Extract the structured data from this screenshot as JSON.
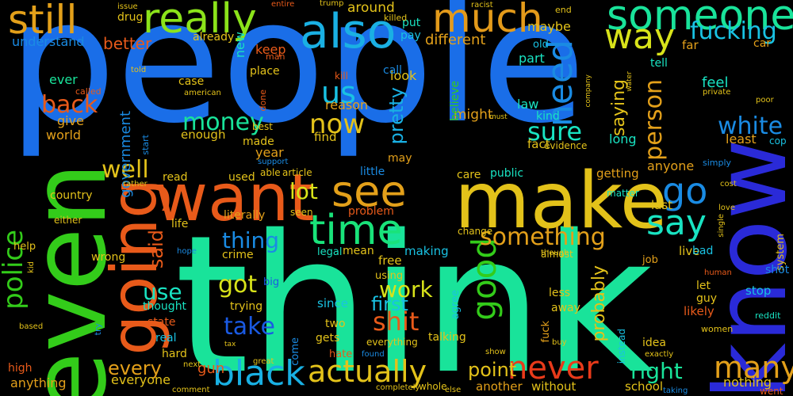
{
  "words": [
    {
      "text": "people",
      "color": "#1a6ee8"
    },
    {
      "text": "think",
      "color": "#19e39a"
    },
    {
      "text": "make",
      "color": "#e3c21a"
    },
    {
      "text": "even",
      "color": "#33cc1a"
    },
    {
      "text": "know",
      "color": "#2a2ad8"
    },
    {
      "text": "want",
      "color": "#e85a1a"
    },
    {
      "text": "going",
      "color": "#e85a1a"
    },
    {
      "text": "also",
      "color": "#1ab0e3"
    },
    {
      "text": "really",
      "color": "#8be31a"
    },
    {
      "text": "much",
      "color": "#e39a1a"
    },
    {
      "text": "someone",
      "color": "#19e39a"
    },
    {
      "text": "still",
      "color": "#e3a01a"
    },
    {
      "text": "way",
      "color": "#d8e31a"
    },
    {
      "text": "time",
      "color": "#19e37a"
    },
    {
      "text": "see",
      "color": "#e3a01a"
    },
    {
      "text": "go",
      "color": "#1a8be3"
    },
    {
      "text": "say",
      "color": "#19e3c2"
    },
    {
      "text": "need",
      "color": "#1a8be3"
    },
    {
      "text": "good",
      "color": "#33cc1a"
    },
    {
      "text": "black",
      "color": "#19b0e3"
    },
    {
      "text": "actually",
      "color": "#e3c21a"
    },
    {
      "text": "never",
      "color": "#e83a1a"
    },
    {
      "text": "many",
      "color": "#e3a01a"
    },
    {
      "text": "right",
      "color": "#19e39a"
    },
    {
      "text": "us",
      "color": "#19c2e3"
    },
    {
      "text": "police",
      "color": "#33cc1a"
    },
    {
      "text": "fucking",
      "color": "#19c2e3"
    },
    {
      "text": "white",
      "color": "#1a8be3"
    },
    {
      "text": "shit",
      "color": "#e85a1a"
    },
    {
      "text": "take",
      "color": "#1a5ae3"
    },
    {
      "text": "now",
      "color": "#e3c21a"
    },
    {
      "text": "something",
      "color": "#e3a01a"
    },
    {
      "text": "sure",
      "color": "#19e3c2"
    },
    {
      "text": "person",
      "color": "#e3a01a"
    },
    {
      "text": "money",
      "color": "#19e39a"
    },
    {
      "text": "well",
      "color": "#e3c21a"
    },
    {
      "text": "thing",
      "color": "#1a8be3"
    },
    {
      "text": "got",
      "color": "#d8e31a"
    },
    {
      "text": "use",
      "color": "#19e3c2"
    },
    {
      "text": "lot",
      "color": "#d8e31a"
    },
    {
      "text": "work",
      "color": "#d8e31a"
    },
    {
      "text": "first",
      "color": "#19c2e3"
    },
    {
      "text": "every",
      "color": "#e3a01a"
    },
    {
      "text": "back",
      "color": "#e85a1a"
    },
    {
      "text": "pretty",
      "color": "#19b0e3"
    },
    {
      "text": "saying",
      "color": "#e3c21a"
    },
    {
      "text": "said",
      "color": "#e85a1a"
    },
    {
      "text": "point",
      "color": "#e3c21a"
    },
    {
      "text": "probably",
      "color": "#e3c21a"
    },
    {
      "text": "government",
      "color": "#1a8be3"
    },
    {
      "text": "better",
      "color": "#e85a1a"
    },
    {
      "text": "understand",
      "color": "#1a8be3"
    },
    {
      "text": "different",
      "color": "#e3a01a"
    },
    {
      "text": "around",
      "color": "#e3c21a"
    },
    {
      "text": "drug",
      "color": "#e3c21a"
    },
    {
      "text": "maybe",
      "color": "#e3c21a"
    },
    {
      "text": "already",
      "color": "#e3c21a"
    },
    {
      "text": "new",
      "color": "#19e3c2"
    },
    {
      "text": "keep",
      "color": "#e85a1a"
    },
    {
      "text": "put",
      "color": "#19e3c2"
    },
    {
      "text": "pay",
      "color": "#19c2e3"
    },
    {
      "text": "look",
      "color": "#e3c21a"
    },
    {
      "text": "part",
      "color": "#19e3c2"
    },
    {
      "text": "tell",
      "color": "#19e3c2"
    },
    {
      "text": "far",
      "color": "#e3a01a"
    },
    {
      "text": "old",
      "color": "#19c2e3"
    },
    {
      "text": "car",
      "color": "#e3a01a"
    },
    {
      "text": "feel",
      "color": "#19e3c2"
    },
    {
      "text": "ever",
      "color": "#19e39a"
    },
    {
      "text": "give",
      "color": "#e3a01a"
    },
    {
      "text": "world",
      "color": "#e3a01a"
    },
    {
      "text": "case",
      "color": "#e3c21a"
    },
    {
      "text": "place",
      "color": "#e3c21a"
    },
    {
      "text": "call",
      "color": "#1a8be3"
    },
    {
      "text": "reason",
      "color": "#e3a01a"
    },
    {
      "text": "kill",
      "color": "#e85a1a"
    },
    {
      "text": "might",
      "color": "#e3a01a"
    },
    {
      "text": "believe",
      "color": "#33cc1a"
    },
    {
      "text": "law",
      "color": "#19e3c2"
    },
    {
      "text": "kind",
      "color": "#19e3c2"
    },
    {
      "text": "fact",
      "color": "#e3c21a"
    },
    {
      "text": "evidence",
      "color": "#e3c21a"
    },
    {
      "text": "long",
      "color": "#19e3c2"
    },
    {
      "text": "least",
      "color": "#e3a01a"
    },
    {
      "text": "cop",
      "color": "#19c2e3"
    },
    {
      "text": "made",
      "color": "#e3c21a"
    },
    {
      "text": "year",
      "color": "#e3a01a"
    },
    {
      "text": "best",
      "color": "#e3c21a"
    },
    {
      "text": "enough",
      "color": "#e3c21a"
    },
    {
      "text": "find",
      "color": "#e3c21a"
    },
    {
      "text": "may",
      "color": "#e3a01a"
    },
    {
      "text": "little",
      "color": "#1a8be3"
    },
    {
      "text": "care",
      "color": "#e3c21a"
    },
    {
      "text": "public",
      "color": "#19e3c2"
    },
    {
      "text": "getting",
      "color": "#e3a01a"
    },
    {
      "text": "anyone",
      "color": "#e3a01a"
    },
    {
      "text": "read",
      "color": "#e3c21a"
    },
    {
      "text": "used",
      "color": "#e3c21a"
    },
    {
      "text": "article",
      "color": "#e3c21a"
    },
    {
      "text": "able",
      "color": "#e3c21a"
    },
    {
      "text": "country",
      "color": "#e3c21a"
    },
    {
      "text": "literally",
      "color": "#e3a01a"
    },
    {
      "text": "problem",
      "color": "#e85a1a"
    },
    {
      "text": "matter",
      "color": "#19e3c2"
    },
    {
      "text": "last",
      "color": "#e3c21a"
    },
    {
      "text": "life",
      "color": "#e3c21a"
    },
    {
      "text": "crime",
      "color": "#e3c21a"
    },
    {
      "text": "legal",
      "color": "#19e3c2"
    },
    {
      "text": "mean",
      "color": "#e3c21a"
    },
    {
      "text": "making",
      "color": "#19c2e3"
    },
    {
      "text": "free",
      "color": "#e3c21a"
    },
    {
      "text": "using",
      "color": "#e3c21a"
    },
    {
      "text": "live",
      "color": "#e3c21a"
    },
    {
      "text": "bad",
      "color": "#19c2e3"
    },
    {
      "text": "job",
      "color": "#e3a01a"
    },
    {
      "text": "let",
      "color": "#e3c21a"
    },
    {
      "text": "guy",
      "color": "#e3c21a"
    },
    {
      "text": "stop",
      "color": "#19c2e3"
    },
    {
      "text": "likely",
      "color": "#e85a1a"
    },
    {
      "text": "wrong",
      "color": "#e3c21a"
    },
    {
      "text": "thought",
      "color": "#19e3c2"
    },
    {
      "text": "trying",
      "color": "#e3c21a"
    },
    {
      "text": "since",
      "color": "#19c2e3"
    },
    {
      "text": "less",
      "color": "#e3c21a"
    },
    {
      "text": "away",
      "color": "#e3c21a"
    },
    {
      "text": "state",
      "color": "#e85a1a"
    },
    {
      "text": "real",
      "color": "#19c2e3"
    },
    {
      "text": "hard",
      "color": "#e3c21a"
    },
    {
      "text": "two",
      "color": "#e3c21a"
    },
    {
      "text": "gets",
      "color": "#e3c21a"
    },
    {
      "text": "talking",
      "color": "#e3c21a"
    },
    {
      "text": "idea",
      "color": "#e3c21a"
    },
    {
      "text": "gun",
      "color": "#e85a1a"
    },
    {
      "text": "high",
      "color": "#e85a1a"
    },
    {
      "text": "anything",
      "color": "#e3a01a"
    },
    {
      "text": "everyone",
      "color": "#e3c21a"
    },
    {
      "text": "another",
      "color": "#e3a01a"
    },
    {
      "text": "without",
      "color": "#e3c21a"
    },
    {
      "text": "school",
      "color": "#e3c21a"
    },
    {
      "text": "nothing",
      "color": "#e3c21a"
    },
    {
      "text": "help",
      "color": "#e3c21a"
    },
    {
      "text": "either",
      "color": "#e3c21a"
    },
    {
      "text": "hate",
      "color": "#e85a1a"
    },
    {
      "text": "whole",
      "color": "#e3c21a"
    },
    {
      "text": "fuck",
      "color": "#e3a01a"
    },
    {
      "text": "instead",
      "color": "#19c2e3"
    },
    {
      "text": "system",
      "color": "#e3c21a"
    },
    {
      "text": "change",
      "color": "#e3c21a"
    },
    {
      "text": "almost",
      "color": "#e3c21a"
    },
    {
      "text": "agree",
      "color": "#19c2e3"
    },
    {
      "text": "come",
      "color": "#1a8be3"
    },
    {
      "text": "big",
      "color": "#1a5ae3"
    },
    {
      "text": "seen",
      "color": "#e3c21a"
    },
    {
      "text": "start",
      "color": "#1a8be3"
    },
    {
      "text": "support",
      "color": "#1a8be3"
    },
    {
      "text": "rather",
      "color": "#e3c21a"
    },
    {
      "text": "called",
      "color": "#e85a1a"
    },
    {
      "text": "american",
      "color": "#e3c21a"
    },
    {
      "text": "done",
      "color": "#e85a1a"
    },
    {
      "text": "man",
      "color": "#e85a1a"
    },
    {
      "text": "told",
      "color": "#e3c21a"
    },
    {
      "text": "issue",
      "color": "#e3c21a"
    },
    {
      "text": "entire",
      "color": "#e85a1a"
    },
    {
      "text": "trump",
      "color": "#e3c21a"
    },
    {
      "text": "killed",
      "color": "#e3c21a"
    },
    {
      "text": "end",
      "color": "#e3c21a"
    },
    {
      "text": "racist",
      "color": "#e3c21a"
    },
    {
      "text": "must",
      "color": "#e3c21a"
    },
    {
      "text": "company",
      "color": "#e3c21a"
    },
    {
      "text": "water",
      "color": "#e3c21a"
    },
    {
      "text": "private",
      "color": "#e3c21a"
    },
    {
      "text": "poor",
      "color": "#e3c21a"
    },
    {
      "text": "cost",
      "color": "#e3c21a"
    },
    {
      "text": "love",
      "color": "#e3c21a"
    },
    {
      "text": "single",
      "color": "#e3c21a"
    },
    {
      "text": "simply",
      "color": "#1a8be3"
    },
    {
      "text": "human",
      "color": "#e85a1a"
    },
    {
      "text": "shot",
      "color": "#1a8be3"
    },
    {
      "text": "reddit",
      "color": "#19e3c2"
    },
    {
      "text": "women",
      "color": "#e3c21a"
    },
    {
      "text": "exactly",
      "color": "#e3c21a"
    },
    {
      "text": "buy",
      "color": "#e3c21a"
    },
    {
      "text": "show",
      "color": "#e3c21a"
    },
    {
      "text": "though",
      "color": "#e3c21a"
    },
    {
      "text": "tax",
      "color": "#e3c21a"
    },
    {
      "text": "found",
      "color": "#1a8be3"
    },
    {
      "text": "everything",
      "color": "#e3c21a"
    },
    {
      "text": "completely",
      "color": "#e3c21a"
    },
    {
      "text": "else",
      "color": "#e3c21a"
    },
    {
      "text": "taking",
      "color": "#1a8be3"
    },
    {
      "text": "went",
      "color": "#e85a1a"
    },
    {
      "text": "comment",
      "color": "#e3c21a"
    },
    {
      "text": "next",
      "color": "#e3c21a"
    },
    {
      "text": "great",
      "color": "#e3c21a"
    },
    {
      "text": "based",
      "color": "#e3c21a"
    },
    {
      "text": "try",
      "color": "#1a8be3"
    },
    {
      "text": "hope",
      "color": "#1a8be3"
    },
    {
      "text": "kid",
      "color": "#e3c21a"
    }
  ]
}
